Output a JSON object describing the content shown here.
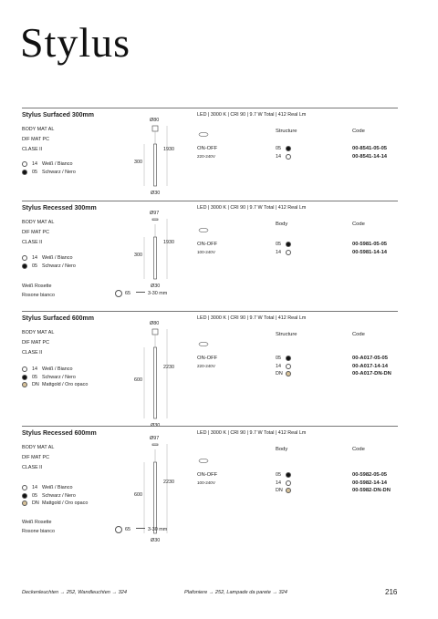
{
  "header": {
    "title": "Stylus"
  },
  "sections": [
    {
      "title": "Stylus Surfaced 300mm",
      "specs": "LED | 3000 K | CRI 90 | 9.7 W Total | 412 Real Lm",
      "materials": [
        "BODY MAT AL",
        "DIF MAT PC",
        "CLASE II"
      ],
      "finishes": [
        {
          "code": "14",
          "name": "Weiß / Bianco",
          "swatch": "#ffffff"
        },
        {
          "code": "05",
          "name": "Schwarz / Nero",
          "swatch": "#111111"
        }
      ],
      "dimensions": {
        "top": "Ø80",
        "length": "1930",
        "height": "300",
        "bottom": "Ø30"
      },
      "switch": "ON-OFF",
      "voltage": "220-240V",
      "column_label": "Structure",
      "code_label": "Code",
      "variants": [
        {
          "finish": "05",
          "code": "00-8541-05-05"
        },
        {
          "finish": "14",
          "code": "00-8541-14-14"
        }
      ]
    },
    {
      "title": "Stylus Recessed 300mm",
      "specs": "LED | 3000 K | CRI 90 | 9.7 W Total | 412 Real Lm",
      "materials": [
        "BODY MAT AL",
        "DIF MAT PC",
        "CLASE II"
      ],
      "finishes": [
        {
          "code": "14",
          "name": "Weiß / Bianco",
          "swatch": "#ffffff"
        },
        {
          "code": "05",
          "name": "Schwarz / Nero",
          "swatch": "#111111"
        }
      ],
      "dimensions": {
        "top": "Ø97",
        "length": "1930",
        "height": "300",
        "bottom": "Ø30"
      },
      "switch": "ON-OFF",
      "voltage": "100-240V",
      "column_label": "Body",
      "code_label": "Code",
      "variants": [
        {
          "finish": "05",
          "code": "00-5981-05-05"
        },
        {
          "finish": "14",
          "code": "00-5981-14-14"
        }
      ],
      "rosette": {
        "lines": [
          "Weiß Rosette",
          "Rosone bianco"
        ],
        "diameter": "65",
        "thickness": "3-30 mm"
      }
    },
    {
      "title": "Stylus Surfaced 600mm",
      "specs": "LED | 3000 K | CRI 90 | 9.7 W Total | 412 Real Lm",
      "materials": [
        "BODY MAT AL",
        "DIF MAT PC",
        "CLASE II"
      ],
      "finishes": [
        {
          "code": "14",
          "name": "Weiß / Bianco",
          "swatch": "#ffffff"
        },
        {
          "code": "05",
          "name": "Schwarz / Nero",
          "swatch": "#111111"
        },
        {
          "code": "DN",
          "name": "Mattgold / Oro opaco",
          "swatch": "#d8c29a"
        }
      ],
      "dimensions": {
        "top": "Ø80",
        "length": "2230",
        "height": "600",
        "bottom": "Ø30"
      },
      "switch": "ON-OFF",
      "voltage": "220-240V",
      "column_label": "Structure",
      "code_label": "Code",
      "variants": [
        {
          "finish": "05",
          "code": "00-A017-05-05"
        },
        {
          "finish": "14",
          "code": "00-A017-14-14"
        },
        {
          "finish": "DN",
          "code": "00-A017-DN-DN"
        }
      ]
    },
    {
      "title": "Stylus Recessed 600mm",
      "specs": "LED | 3000 K | CRI 90 | 9.7 W Total | 412 Real Lm",
      "materials": [
        "BODY MAT AL",
        "DIF MAT PC",
        "CLASE II"
      ],
      "finishes": [
        {
          "code": "14",
          "name": "Weiß / Bianco",
          "swatch": "#ffffff"
        },
        {
          "code": "05",
          "name": "Schwarz / Nero",
          "swatch": "#111111"
        },
        {
          "code": "DN",
          "name": "Mattgold / Oro opaco",
          "swatch": "#d8c29a"
        }
      ],
      "dimensions": {
        "top": "Ø97",
        "length": "2230",
        "height": "600",
        "bottom": "Ø30"
      },
      "switch": "ON-OFF",
      "voltage": "100-240V",
      "column_label": "Body",
      "code_label": "Code",
      "variants": [
        {
          "finish": "05",
          "code": "00-5982-05-05"
        },
        {
          "finish": "14",
          "code": "00-5982-14-14"
        },
        {
          "finish": "DN",
          "code": "00-5982-DN-DN"
        }
      ],
      "rosette": {
        "lines": [
          "Weiß Rosette",
          "Rosone bianco"
        ],
        "diameter": "65",
        "thickness": "3-30 mm"
      }
    }
  ],
  "footer": {
    "left": "Deckenleuchten → 252, Wandleuchten → 324",
    "middle": "Plafoniere → 252, Lampade da parete → 324",
    "page": "216"
  }
}
